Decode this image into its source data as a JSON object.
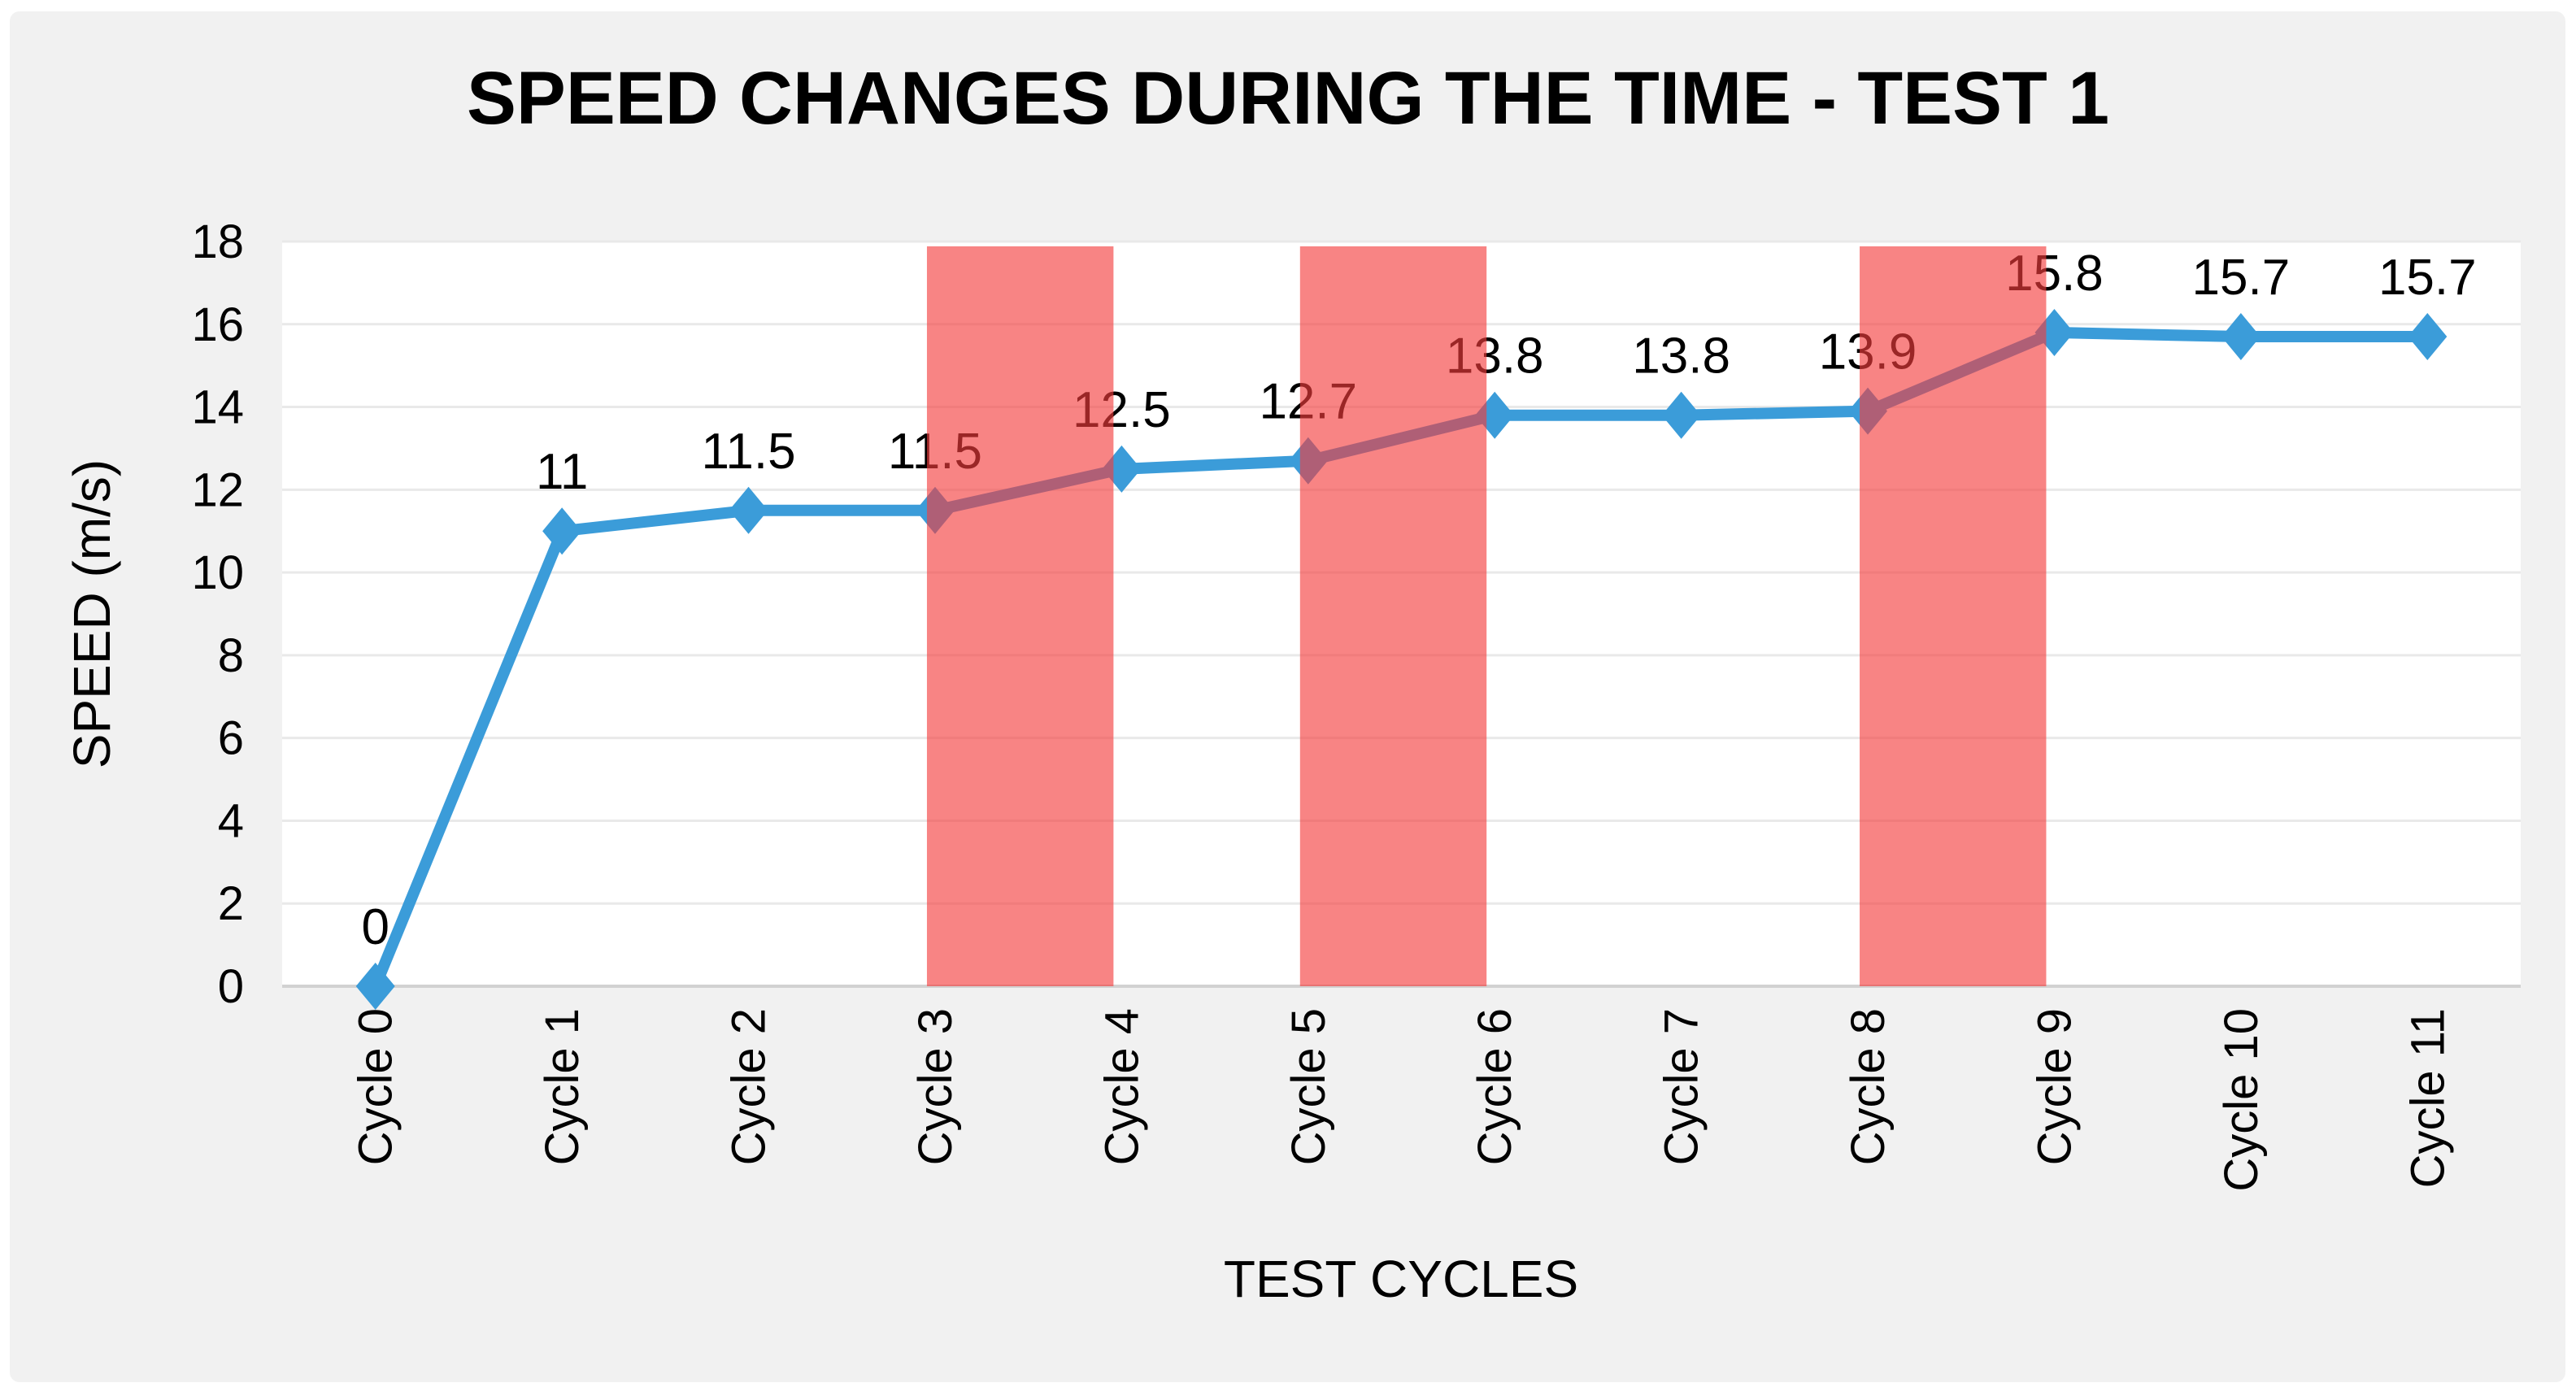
{
  "chart_data": {
    "type": "line",
    "title": "SPEED CHANGES DURING THE TIME - TEST 1",
    "xlabel": "TEST CYCLES",
    "ylabel": "SPEED (m/s)",
    "categories": [
      "Cycle 0",
      "Cycle 1",
      "Cycle 2",
      "Cycle 3",
      "Cycle 4",
      "Cycle 5",
      "Cycle 6",
      "Cycle 7",
      "Cycle 8",
      "Cycle 9",
      "Cycle 10",
      "Cycle 11"
    ],
    "values": [
      0,
      11,
      11.5,
      11.5,
      12.5,
      12.7,
      13.8,
      13.8,
      13.9,
      15.8,
      15.7,
      15.7
    ],
    "data_labels": [
      "0",
      "11",
      "11.5",
      "11.5",
      "12.5",
      "12.7",
      "13.8",
      "13.8",
      "13.9",
      "15.8",
      "15.7",
      "15.7"
    ],
    "ylim": [
      0,
      18
    ],
    "y_tick_step": 2,
    "y_tick_labels": [
      "0",
      "2",
      "4",
      "6",
      "8",
      "10",
      "12",
      "14",
      "16",
      "18"
    ],
    "grid": true,
    "legend_position": "none",
    "highlight_bands": [
      {
        "from": "Cycle 3",
        "to": "Cycle 4"
      },
      {
        "from": "Cycle 5",
        "to": "Cycle 6"
      },
      {
        "from": "Cycle 8",
        "to": "Cycle 9"
      }
    ],
    "colors": {
      "line": "#3B9CD9",
      "marker": "#3B9CD9",
      "band": "rgba(244,60,60,0.63)",
      "gridline": "#E9E9E9",
      "axis_line": "#D2D2D2",
      "plot_bg": "#FFFFFF",
      "chart_bg": "#F1F1F1",
      "page_bg": "#FFFFFF",
      "text": "#000000"
    }
  }
}
